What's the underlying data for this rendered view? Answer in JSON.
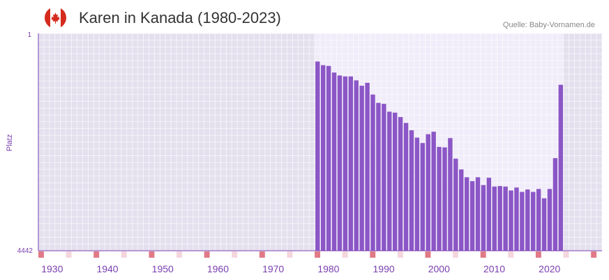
{
  "header": {
    "title": "Karen in Kanada (1980-2023)",
    "source": "Quelle: Baby-Vornamen.de",
    "flag_icon": "canada-flag-icon"
  },
  "colors": {
    "bar": "#8b56c6",
    "accent": "#7a3fb0",
    "band_outer": "#e4e0ee",
    "band_inner": "#f0ecf9",
    "tick_marker": "#e07a86",
    "tick_marker_light": "#f4d6dc",
    "flag_red": "#d52b1e"
  },
  "chart_data": {
    "type": "bar",
    "title": "Karen in Kanada (1980-2023)",
    "ylabel": "Platz",
    "y_axis_inverted": true,
    "ylim": [
      1,
      4442
    ],
    "y_tick_labels": [
      "1",
      "4442"
    ],
    "xlim": [
      1928,
      2029
    ],
    "x_ticks": [
      1930,
      1940,
      1950,
      1960,
      1970,
      1980,
      1990,
      2000,
      2010,
      2020
    ],
    "highlight_range": [
      1978,
      2022
    ],
    "years": [
      1978,
      1979,
      1980,
      1981,
      1982,
      1983,
      1984,
      1985,
      1986,
      1987,
      1988,
      1989,
      1990,
      1991,
      1992,
      1993,
      1994,
      1995,
      1996,
      1997,
      1998,
      1999,
      2000,
      2001,
      2002,
      2003,
      2004,
      2005,
      2006,
      2007,
      2008,
      2009,
      2010,
      2011,
      2012,
      2013,
      2014,
      2015,
      2016,
      2017,
      2018,
      2019,
      2020,
      2021,
      2022
    ],
    "ranks": [
      575,
      650,
      665,
      800,
      860,
      880,
      880,
      960,
      1070,
      1010,
      1250,
      1420,
      1440,
      1600,
      1620,
      1710,
      1830,
      1980,
      2130,
      2240,
      2060,
      2010,
      2320,
      2330,
      2140,
      2560,
      2780,
      2940,
      3020,
      2940,
      3100,
      2950,
      3130,
      3120,
      3130,
      3210,
      3150,
      3240,
      3190,
      3240,
      3180,
      3370,
      3180,
      2550,
      1050
    ]
  }
}
